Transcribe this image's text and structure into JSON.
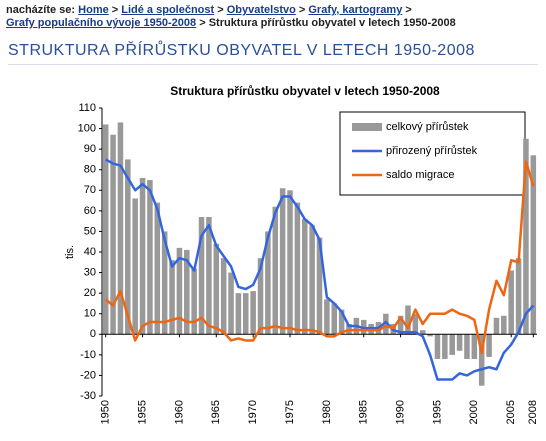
{
  "breadcrumb": {
    "label": "nacházíte se:",
    "links": [
      "Home",
      "Lidé a společnost",
      "Obyvatelstvo",
      "Grafy, kartogramy",
      "Grafy populačního vývoje 1950-2008"
    ],
    "current": "Struktura přírůstku obyvatel v letech 1950-2008"
  },
  "heading": "STRUKTURA PŘÍRŮSTKU OBYVATEL V LETECH 1950-2008",
  "chart_data": {
    "type": "bar-line",
    "title": "Struktura přírůstku obyvatel v letech 1950-2008",
    "y_label": "tis.",
    "x": [
      1950,
      1951,
      1952,
      1953,
      1954,
      1955,
      1956,
      1957,
      1958,
      1959,
      1960,
      1961,
      1962,
      1963,
      1964,
      1965,
      1966,
      1967,
      1968,
      1969,
      1970,
      1971,
      1972,
      1973,
      1974,
      1975,
      1976,
      1977,
      1978,
      1979,
      1980,
      1981,
      1982,
      1983,
      1984,
      1985,
      1986,
      1987,
      1988,
      1989,
      1990,
      1991,
      1992,
      1993,
      1994,
      1995,
      1996,
      1997,
      1998,
      1999,
      2000,
      2001,
      2002,
      2003,
      2004,
      2005,
      2006,
      2007,
      2008
    ],
    "series": [
      {
        "name": "celkový přírůstek",
        "type": "bar",
        "color": "#999999",
        "values": [
          102,
          97,
          103,
          85,
          66,
          76,
          75,
          64,
          50,
          36,
          42,
          41,
          32,
          57,
          57,
          44,
          37,
          30,
          20,
          20,
          21,
          37,
          50,
          62,
          71,
          70,
          64,
          56,
          53,
          47,
          17,
          15,
          12,
          5,
          8,
          7,
          5,
          6,
          10,
          5,
          9,
          14,
          10,
          2,
          -1,
          -12,
          -12,
          -10,
          -8,
          -12,
          -12,
          -25,
          -11,
          8,
          9,
          31,
          37,
          95,
          87
        ]
      },
      {
        "name": "přirozený přírůstek",
        "type": "line",
        "color": "#3366dd",
        "values": [
          85,
          83,
          82,
          76,
          70,
          73,
          70,
          61,
          46,
          33,
          37,
          36,
          31,
          48,
          53,
          43,
          38,
          33,
          23,
          22,
          24,
          32,
          47,
          59,
          67,
          67,
          62,
          56,
          53,
          46,
          18,
          15,
          11,
          4,
          4,
          3,
          3,
          3,
          6,
          2,
          1,
          1,
          1,
          -1,
          -10,
          -22,
          -22,
          -22,
          -19,
          -20,
          -18,
          -17,
          -16,
          -17,
          -9,
          -5,
          1,
          10,
          14
        ]
      },
      {
        "name": "saldo migrace",
        "type": "line",
        "color": "#ee6611",
        "values": [
          17,
          14,
          21,
          9,
          -3,
          4,
          6,
          6,
          6,
          7,
          8,
          6,
          6,
          8,
          4,
          3,
          1,
          -3,
          -2,
          -3,
          -3,
          3,
          3,
          4,
          3,
          3,
          2,
          2,
          2,
          1,
          -1,
          -1,
          1,
          2,
          2,
          2,
          2,
          2,
          4,
          3,
          8,
          3,
          12,
          5,
          10,
          10,
          10,
          12,
          10,
          9,
          7,
          -9,
          12,
          26,
          19,
          36,
          35,
          84,
          72
        ]
      }
    ],
    "xlim": [
      1949.5,
      2008.5
    ],
    "xticks": [
      1950,
      1955,
      1960,
      1965,
      1970,
      1975,
      1980,
      1985,
      1990,
      1995,
      2000,
      2005,
      2008
    ],
    "ylim": [
      -30,
      110
    ],
    "yticks": [
      -30,
      -20,
      -10,
      0,
      10,
      20,
      30,
      40,
      50,
      60,
      70,
      80,
      90,
      100,
      110
    ]
  }
}
